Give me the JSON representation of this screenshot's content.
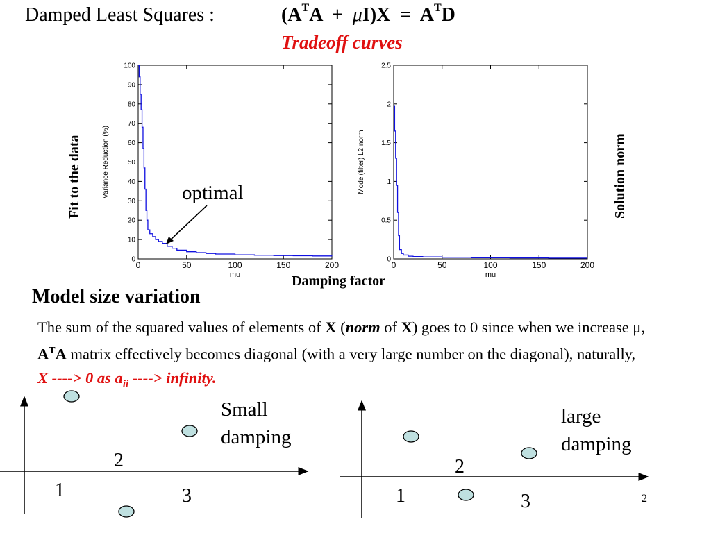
{
  "title": "Damped Least Squares :",
  "equation": {
    "open": "(A",
    "sup1": "T",
    "a": "A  +  ",
    "mu": "μ",
    "rest": "I)X  =  A",
    "sup2": "T",
    "d": "D"
  },
  "subtitle": "Tradeoff curves",
  "left_ylabel": "Fit to the data",
  "right_ylabel": "Solution  norm",
  "optimal_label": "optimal",
  "x_common_label": "Damping factor",
  "section_heading": "Model size variation",
  "paragraph": {
    "t1": "The sum of the squared values of elements of ",
    "b1": "X",
    "t2": " (",
    "i1": "norm",
    "t3": " of ",
    "b2": "X",
    "t4": ") goes to 0 since when we increase μ, ",
    "b3": "A",
    "sup": "T",
    "b4": "A",
    "t5": " matrix effectively becomes diagonal (with a very large number on the diagonal), naturally, ",
    "red1": "X ----> 0  as  a",
    "red_sub": "ii",
    "red2": " ----> infinity."
  },
  "small_damping": {
    "line1": "Small",
    "line2": "damping",
    "n1": "1",
    "n2": "2",
    "n3": "3"
  },
  "large_damping": {
    "line1": "large",
    "line2": "damping",
    "n1": "1",
    "n2": "2",
    "n3": "3"
  },
  "page_number": "2",
  "chart_data": [
    {
      "type": "line",
      "xlabel": "mu",
      "ylabel": "Variance Reduction (%)",
      "xlim": [
        0,
        200
      ],
      "ylim": [
        0,
        100
      ],
      "xticks": [
        0,
        50,
        100,
        150,
        200
      ],
      "yticks": [
        0,
        10,
        20,
        30,
        40,
        50,
        60,
        70,
        80,
        90,
        100
      ],
      "color": "#1010e0",
      "x": [
        0,
        1,
        2,
        3,
        4,
        5,
        6,
        7,
        8,
        9,
        10,
        12,
        15,
        18,
        21,
        25,
        30,
        35,
        40,
        50,
        60,
        70,
        80,
        100,
        120,
        140,
        160,
        180,
        200
      ],
      "y": [
        100,
        94,
        85,
        77,
        68,
        57,
        47,
        36,
        25,
        20,
        15,
        13,
        11.5,
        10,
        9,
        8,
        6.5,
        5.5,
        4.5,
        3.7,
        3.2,
        2.8,
        2.5,
        2.1,
        1.9,
        1.7,
        1.6,
        1.5,
        1.4
      ]
    },
    {
      "type": "line",
      "xlabel": "mu",
      "ylabel": "Model(filter) L2 norm",
      "xlim": [
        0,
        200
      ],
      "ylim": [
        0,
        2.5
      ],
      "xticks": [
        0,
        50,
        100,
        150,
        200
      ],
      "yticks": [
        0,
        0.5,
        1,
        1.5,
        2,
        2.5
      ],
      "color": "#1010e0",
      "x": [
        0,
        1,
        2,
        3,
        4,
        5,
        6,
        8,
        10,
        15,
        20,
        30,
        50,
        80,
        120,
        160,
        200
      ],
      "y": [
        1.97,
        1.65,
        1.3,
        0.95,
        0.6,
        0.3,
        0.12,
        0.07,
        0.05,
        0.035,
        0.03,
        0.025,
        0.02,
        0.015,
        0.012,
        0.01,
        0.01
      ]
    }
  ]
}
